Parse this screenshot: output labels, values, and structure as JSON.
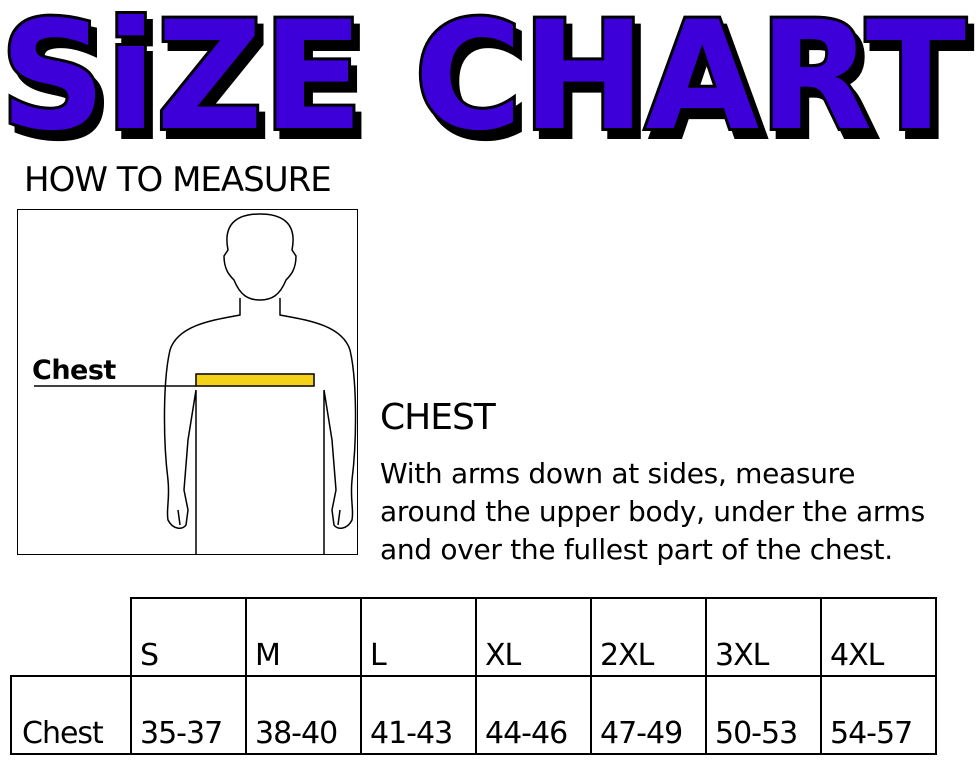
{
  "title": "SiZE CHART",
  "title_color": "#3d00d9",
  "how_to_measure": "HOW TO MEASURE",
  "figure": {
    "chest_label": "Chest",
    "tape_color": "#f5d21a"
  },
  "section": {
    "title": "CHEST",
    "lines": [
      "With arms down at sides, measure",
      "around the upper body, under the arms",
      "and over the fullest part of the chest."
    ]
  },
  "table": {
    "sizes": [
      "S",
      "M",
      "L",
      "XL",
      "2XL",
      "3XL",
      "4XL"
    ],
    "row_label": "Chest",
    "values": [
      "35-37",
      "38-40",
      "41-43",
      "44-46",
      "47-49",
      "50-53",
      "54-57"
    ]
  }
}
